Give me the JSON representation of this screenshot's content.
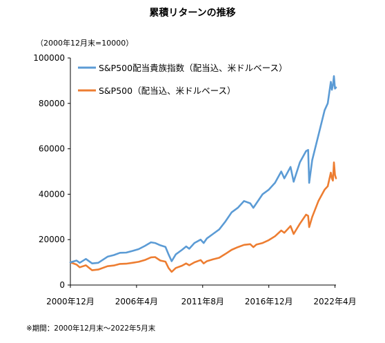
{
  "title": "累積リターンの推移",
  "unit_note": "（2000年12月末=10000）",
  "footnote": "※期間：2000年12月末～2022年5月末",
  "colors": {
    "series1": "#5b9bd5",
    "series2": "#ed7d31",
    "axis": "#000000"
  },
  "chart_data": {
    "type": "line",
    "xlabel": "",
    "ylabel": "",
    "xlim": [
      "2000-12",
      "2022-05"
    ],
    "ylim": [
      0,
      100000
    ],
    "yticks": [
      0,
      20000,
      40000,
      60000,
      80000,
      100000
    ],
    "xticks": [
      {
        "date": "2000-12",
        "label": "2000年12月"
      },
      {
        "date": "2006-04",
        "label": "2006年4月"
      },
      {
        "date": "2011-08",
        "label": "2011年8月"
      },
      {
        "date": "2016-12",
        "label": "2016年12月"
      },
      {
        "date": "2022-04",
        "label": "2022年4月"
      }
    ],
    "grid": false,
    "legend": "top-left",
    "series": [
      {
        "name": "S&P500配当貴族指数（配当込、米ドルベース）",
        "color": "#5b9bd5",
        "points": [
          [
            "2000-12",
            10000
          ],
          [
            "2001-06",
            10800
          ],
          [
            "2001-09",
            9800
          ],
          [
            "2002-03",
            11500
          ],
          [
            "2002-09",
            9500
          ],
          [
            "2003-03",
            9800
          ],
          [
            "2003-12",
            12500
          ],
          [
            "2004-06",
            13200
          ],
          [
            "2004-12",
            14200
          ],
          [
            "2005-06",
            14300
          ],
          [
            "2005-12",
            15000
          ],
          [
            "2006-06",
            15800
          ],
          [
            "2006-12",
            17200
          ],
          [
            "2007-06",
            18800
          ],
          [
            "2007-10",
            18500
          ],
          [
            "2008-03",
            17500
          ],
          [
            "2008-08",
            16800
          ],
          [
            "2008-11",
            13500
          ],
          [
            "2009-02",
            10500
          ],
          [
            "2009-06",
            13500
          ],
          [
            "2009-12",
            15500
          ],
          [
            "2010-04",
            17000
          ],
          [
            "2010-07",
            16000
          ],
          [
            "2010-12",
            18500
          ],
          [
            "2011-06",
            20000
          ],
          [
            "2011-09",
            18500
          ],
          [
            "2011-12",
            20500
          ],
          [
            "2012-06",
            22500
          ],
          [
            "2012-12",
            24500
          ],
          [
            "2013-06",
            28000
          ],
          [
            "2013-12",
            32000
          ],
          [
            "2014-06",
            34000
          ],
          [
            "2014-12",
            37000
          ],
          [
            "2015-06",
            36000
          ],
          [
            "2015-09",
            34000
          ],
          [
            "2015-12",
            36000
          ],
          [
            "2016-06",
            40000
          ],
          [
            "2016-12",
            42000
          ],
          [
            "2017-06",
            45000
          ],
          [
            "2017-12",
            50000
          ],
          [
            "2018-03",
            47000
          ],
          [
            "2018-09",
            52000
          ],
          [
            "2018-12",
            45500
          ],
          [
            "2019-06",
            54000
          ],
          [
            "2019-12",
            59000
          ],
          [
            "2020-02",
            59500
          ],
          [
            "2020-03",
            45000
          ],
          [
            "2020-06",
            55000
          ],
          [
            "2020-12",
            66000
          ],
          [
            "2021-06",
            77000
          ],
          [
            "2021-09",
            80000
          ],
          [
            "2021-12",
            89500
          ],
          [
            "2022-01",
            86000
          ],
          [
            "2022-02",
            88000
          ],
          [
            "2022-03",
            92000
          ],
          [
            "2022-04",
            86500
          ],
          [
            "2022-05",
            87000
          ]
        ]
      },
      {
        "name": "S&P500（配当込、米ドルベース）",
        "color": "#ed7d31",
        "points": [
          [
            "2000-12",
            10000
          ],
          [
            "2001-06",
            9000
          ],
          [
            "2001-09",
            7800
          ],
          [
            "2002-03",
            8700
          ],
          [
            "2002-09",
            6500
          ],
          [
            "2003-03",
            6800
          ],
          [
            "2003-12",
            8300
          ],
          [
            "2004-06",
            8600
          ],
          [
            "2004-12",
            9300
          ],
          [
            "2005-06",
            9400
          ],
          [
            "2005-12",
            9800
          ],
          [
            "2006-06",
            10200
          ],
          [
            "2006-12",
            11000
          ],
          [
            "2007-06",
            12200
          ],
          [
            "2007-10",
            12300
          ],
          [
            "2008-03",
            10800
          ],
          [
            "2008-08",
            10300
          ],
          [
            "2008-11",
            7500
          ],
          [
            "2009-02",
            5800
          ],
          [
            "2009-06",
            7500
          ],
          [
            "2009-12",
            8500
          ],
          [
            "2010-04",
            9500
          ],
          [
            "2010-07",
            8700
          ],
          [
            "2010-12",
            10000
          ],
          [
            "2011-06",
            11000
          ],
          [
            "2011-09",
            9500
          ],
          [
            "2011-12",
            10500
          ],
          [
            "2012-06",
            11300
          ],
          [
            "2012-12",
            12000
          ],
          [
            "2013-06",
            13700
          ],
          [
            "2013-12",
            15500
          ],
          [
            "2014-06",
            16700
          ],
          [
            "2014-12",
            17700
          ],
          [
            "2015-06",
            18000
          ],
          [
            "2015-09",
            16700
          ],
          [
            "2015-12",
            17800
          ],
          [
            "2016-06",
            18500
          ],
          [
            "2016-12",
            19800
          ],
          [
            "2017-06",
            21500
          ],
          [
            "2017-12",
            24000
          ],
          [
            "2018-03",
            23000
          ],
          [
            "2018-09",
            26000
          ],
          [
            "2018-12",
            22500
          ],
          [
            "2019-06",
            27000
          ],
          [
            "2019-12",
            31000
          ],
          [
            "2020-02",
            30500
          ],
          [
            "2020-03",
            25500
          ],
          [
            "2020-06",
            30000
          ],
          [
            "2020-12",
            37000
          ],
          [
            "2021-06",
            42000
          ],
          [
            "2021-09",
            43500
          ],
          [
            "2021-12",
            49500
          ],
          [
            "2022-01",
            47000
          ],
          [
            "2022-02",
            46000
          ],
          [
            "2022-03",
            54000
          ],
          [
            "2022-04",
            48500
          ],
          [
            "2022-05",
            47000
          ]
        ]
      }
    ]
  }
}
